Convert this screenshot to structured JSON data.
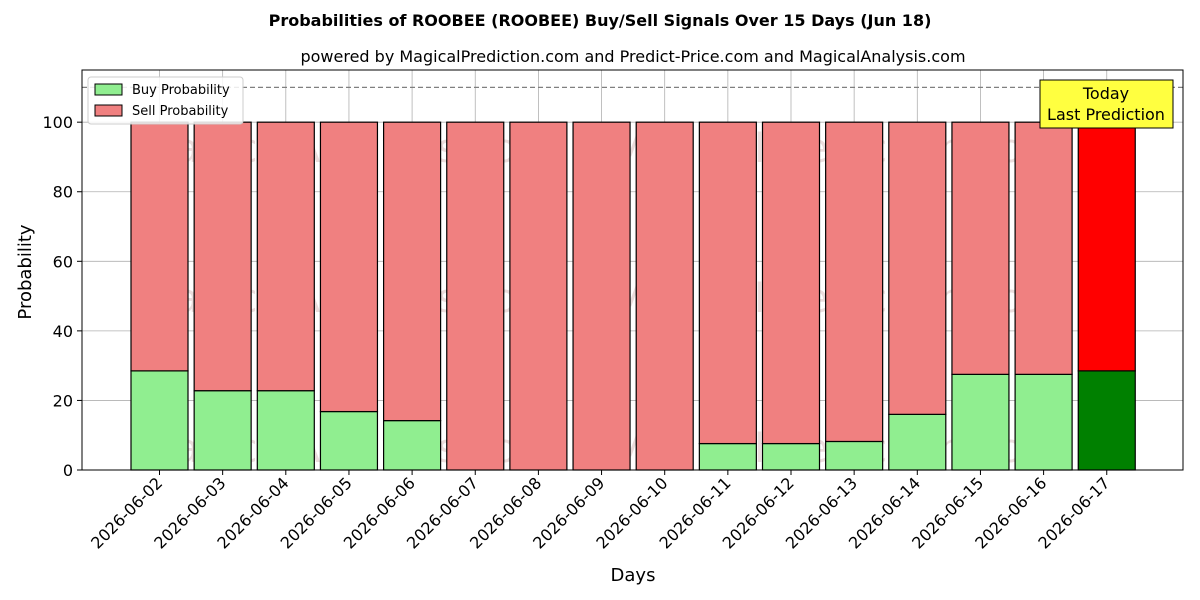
{
  "chart_data": {
    "type": "bar",
    "stacked": true,
    "title": "Probabilities of ROOBEE (ROOBEE) Buy/Sell Signals Over 15 Days (Jun 18)",
    "subtitle": "powered by MagicalPrediction.com and Predict-Price.com and MagicalAnalysis.com",
    "xlabel": "Days",
    "ylabel": "Probability",
    "ylim": [
      0,
      115
    ],
    "yticks": [
      0,
      20,
      40,
      60,
      80,
      100
    ],
    "reference_line": 110,
    "grid": true,
    "legend_position": "top-left",
    "categories": [
      "2026-06-02",
      "2026-06-03",
      "2026-06-04",
      "2026-06-05",
      "2026-06-06",
      "2026-06-07",
      "2026-06-08",
      "2026-06-09",
      "2026-06-10",
      "2026-06-11",
      "2026-06-12",
      "2026-06-13",
      "2026-06-14",
      "2026-06-15",
      "2026-06-16",
      "2026-06-17"
    ],
    "series": [
      {
        "name": "Buy Probability",
        "values": [
          28.5,
          22.8,
          22.8,
          16.8,
          14.2,
          0,
          0,
          0,
          0,
          7.6,
          7.6,
          8.2,
          16.0,
          27.5,
          27.5,
          28.5
        ]
      },
      {
        "name": "Sell Probability",
        "values": [
          71.5,
          77.2,
          77.2,
          83.2,
          85.8,
          100,
          100,
          100,
          100,
          92.4,
          92.4,
          91.8,
          84.0,
          72.5,
          72.5,
          71.5
        ]
      }
    ],
    "annotation": {
      "line1": "Today",
      "line2": "Last Prediction"
    },
    "watermarks": [
      "MagicalAnalysis.com",
      "MagicalPrediction.com"
    ],
    "colors": {
      "buy": "#90ee90",
      "sell": "#f08080",
      "buy_today": "#008000",
      "sell_today": "#ff0000",
      "annotation_bg": "#ffff40"
    }
  }
}
